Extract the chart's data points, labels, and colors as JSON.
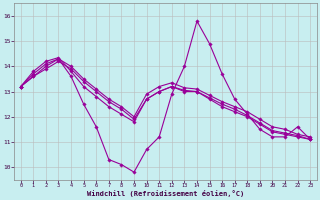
{
  "title": "",
  "xlabel": "Windchill (Refroidissement éolien,°C)",
  "ylabel": "",
  "bg_color": "#c8eef0",
  "line_color": "#990099",
  "grid_color": "#bbbbbb",
  "xlim": [
    -0.5,
    23.5
  ],
  "ylim": [
    9.5,
    16.5
  ],
  "yticks": [
    10,
    11,
    12,
    13,
    14,
    15,
    16
  ],
  "xticks": [
    0,
    1,
    2,
    3,
    4,
    5,
    6,
    7,
    8,
    9,
    10,
    11,
    12,
    13,
    14,
    15,
    16,
    17,
    18,
    19,
    20,
    21,
    22,
    23
  ],
  "series": [
    {
      "x": [
        0,
        1,
        2,
        3,
        4,
        5,
        6,
        7,
        8,
        9,
        10,
        11,
        12,
        13,
        14,
        15,
        16,
        17,
        18,
        19,
        20,
        21,
        22,
        23
      ],
      "y": [
        13.2,
        13.6,
        14.0,
        14.3,
        13.6,
        12.5,
        11.6,
        10.3,
        10.1,
        9.8,
        10.7,
        11.2,
        12.9,
        14.0,
        15.8,
        14.9,
        13.7,
        12.7,
        12.1,
        11.5,
        11.2,
        11.2,
        11.6,
        11.1
      ]
    },
    {
      "x": [
        0,
        1,
        2,
        3,
        4,
        5,
        6,
        7,
        8,
        9,
        10,
        11,
        12,
        13,
        14,
        15,
        16,
        17,
        18,
        19,
        20,
        21,
        22,
        23
      ],
      "y": [
        13.2,
        13.8,
        14.2,
        14.35,
        13.8,
        13.2,
        12.8,
        12.4,
        12.1,
        11.8,
        12.7,
        13.0,
        13.2,
        13.0,
        13.0,
        12.7,
        12.4,
        12.2,
        12.0,
        11.7,
        11.4,
        11.3,
        11.2,
        11.1
      ]
    },
    {
      "x": [
        0,
        1,
        2,
        3,
        4,
        5,
        6,
        7,
        8,
        9,
        10,
        11,
        12,
        13,
        14,
        15,
        16,
        17,
        18,
        19,
        20,
        21,
        22,
        23
      ],
      "y": [
        13.2,
        13.7,
        14.1,
        14.3,
        14.0,
        13.5,
        13.1,
        12.7,
        12.4,
        12.0,
        12.9,
        13.2,
        13.35,
        13.15,
        13.1,
        12.85,
        12.6,
        12.4,
        12.2,
        11.9,
        11.6,
        11.5,
        11.3,
        11.2
      ]
    },
    {
      "x": [
        0,
        1,
        2,
        3,
        4,
        5,
        6,
        7,
        8,
        9,
        10,
        11,
        12,
        13,
        14,
        15,
        16,
        17,
        18,
        19,
        20,
        21,
        22,
        23
      ],
      "y": [
        13.2,
        13.6,
        13.9,
        14.2,
        13.9,
        13.4,
        13.0,
        12.6,
        12.3,
        11.9,
        12.7,
        13.0,
        13.2,
        13.05,
        13.0,
        12.75,
        12.5,
        12.3,
        12.05,
        11.75,
        11.45,
        11.35,
        11.25,
        11.1
      ]
    }
  ]
}
